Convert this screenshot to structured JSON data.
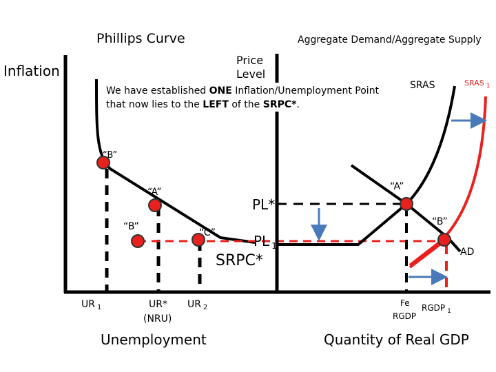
{
  "left_panel": {
    "title": "Phillips Curve",
    "y_axis_label": "Inflation",
    "x_axis_label": "Unemployment",
    "curve_label": "SRPC*",
    "points": {
      "b_top": "“B”",
      "a": "“A”",
      "b_low": "“B”",
      "c": "“C”"
    },
    "ticks": {
      "ur1": "UR",
      "ur1_sub": "1",
      "urstar": "UR*",
      "nru": "(NRU)",
      "ur2": "UR",
      "ur2_sub": "2"
    }
  },
  "right_panel": {
    "title": "Aggregate Demand/Aggregate Supply",
    "y_axis_label_line1": "Price",
    "y_axis_label_line2": "Level",
    "x_axis_label": "Quantity of Real GDP",
    "sras_label": "SRAS",
    "sras1_label": "SRAS",
    "sras1_sub": "1",
    "ad_label": "AD",
    "points": {
      "a": "“A”",
      "b": "“B”"
    },
    "pl_star": "PL*",
    "pl1": "PL",
    "pl1_sub": "1",
    "fe_line1": "Fe",
    "fe_line2": "RGDP",
    "rgdp1": "RGDP",
    "rgdp1_sub": "1"
  },
  "callout": {
    "part1": "We have established ",
    "bold1": "ONE",
    "part2": " Inflation/Unemployment Point that now lies to the ",
    "bold2": "LEFT",
    "part3": " of the ",
    "bold3": "SRPC*",
    "part4": "."
  },
  "colors": {
    "red": "#e8211f",
    "blue": "#4a7ab9",
    "black": "#000000"
  }
}
